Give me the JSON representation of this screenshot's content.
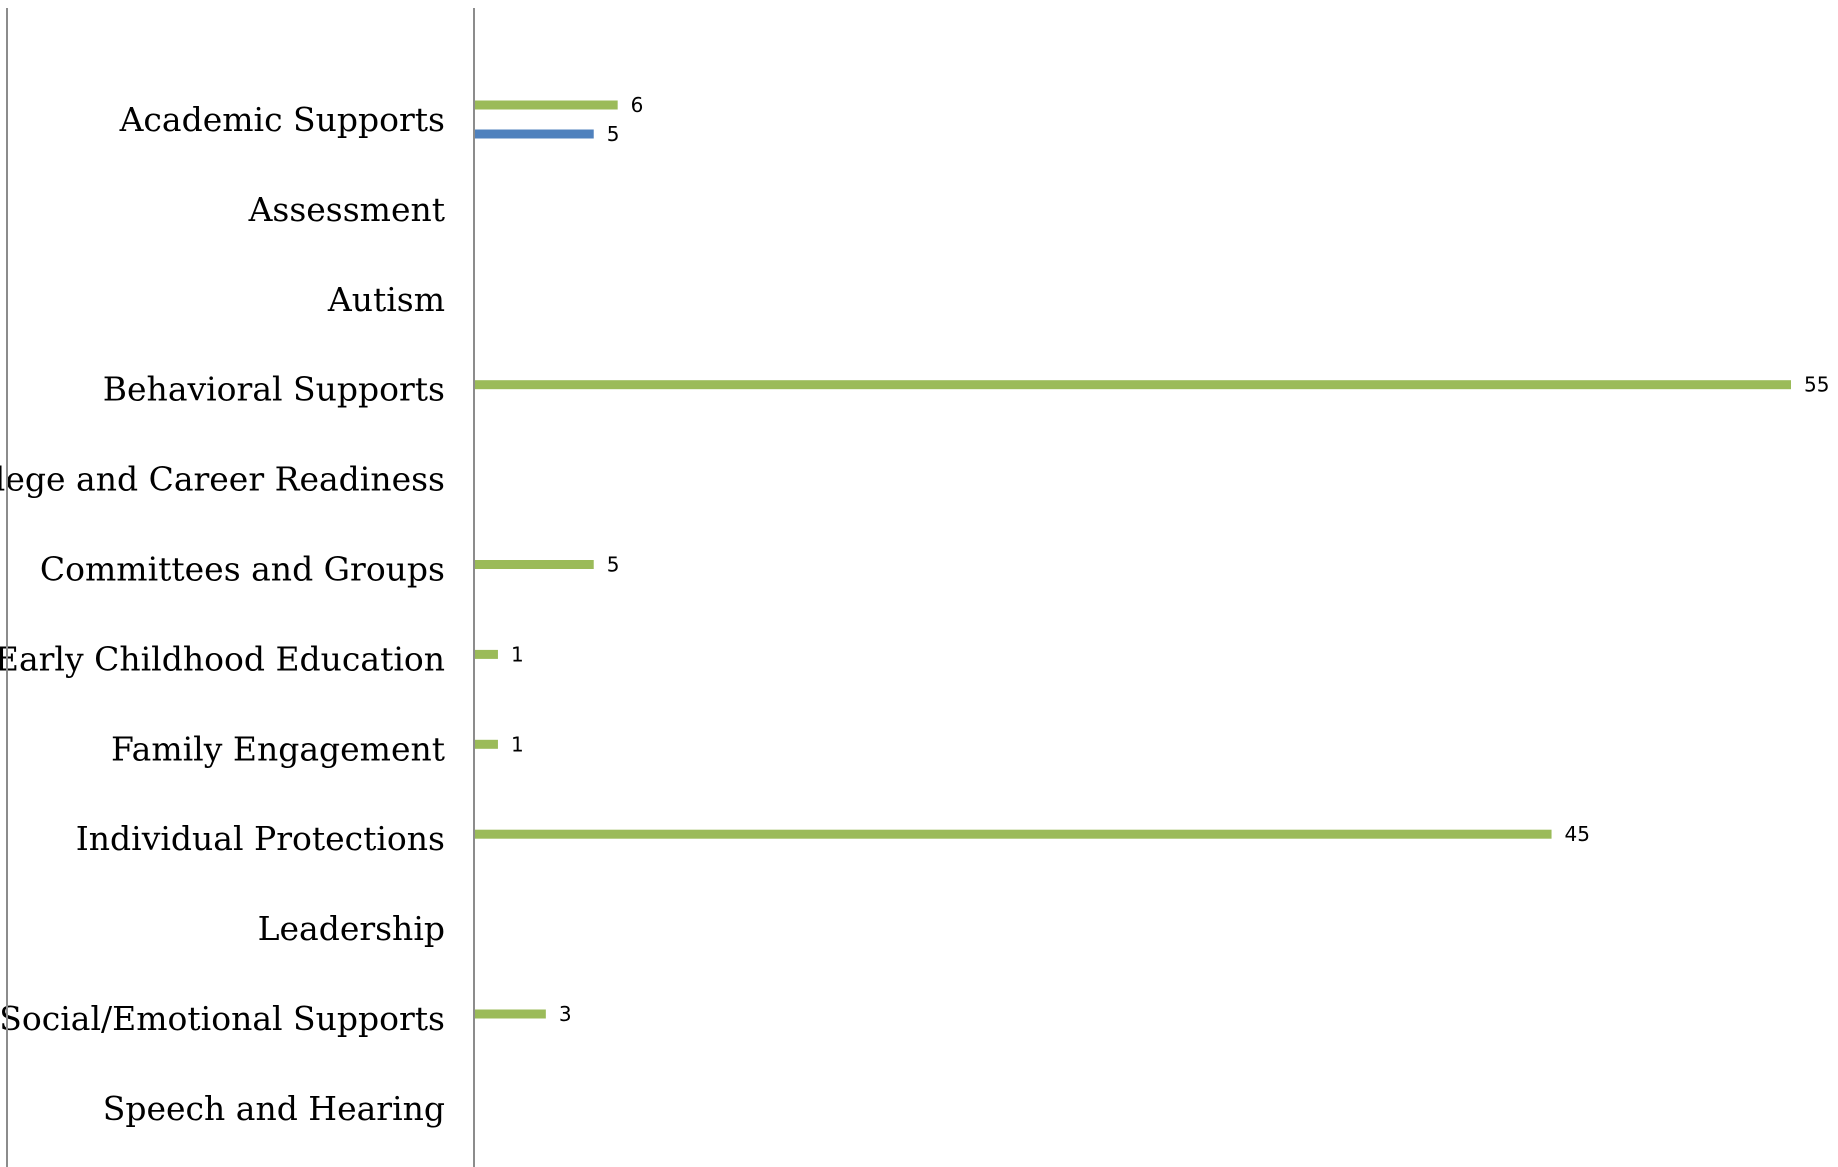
{
  "chart_data": {
    "type": "bar",
    "orientation": "horizontal",
    "categories": [
      "Academic Supports",
      "Assessment",
      "Autism",
      "Behavioral Supports",
      "College and Career Readiness",
      "Committees and Groups",
      "Early Childhood Education",
      "Family Engagement",
      "Individual Protections",
      "Leadership",
      "Social/Emotional Supports",
      "Speech and Hearing"
    ],
    "series": [
      {
        "color": "#9BBB59",
        "values": [
          6,
          null,
          null,
          55,
          null,
          5,
          1,
          1,
          45,
          null,
          3,
          null
        ]
      },
      {
        "color": "#4F81BD",
        "values": [
          5,
          null,
          null,
          null,
          null,
          null,
          null,
          null,
          null,
          null,
          null,
          null
        ]
      }
    ],
    "title": "",
    "xlabel": "",
    "ylabel": "",
    "xlim": [
      0,
      55
    ],
    "grid": false,
    "legend": "none",
    "data_labels": true
  }
}
